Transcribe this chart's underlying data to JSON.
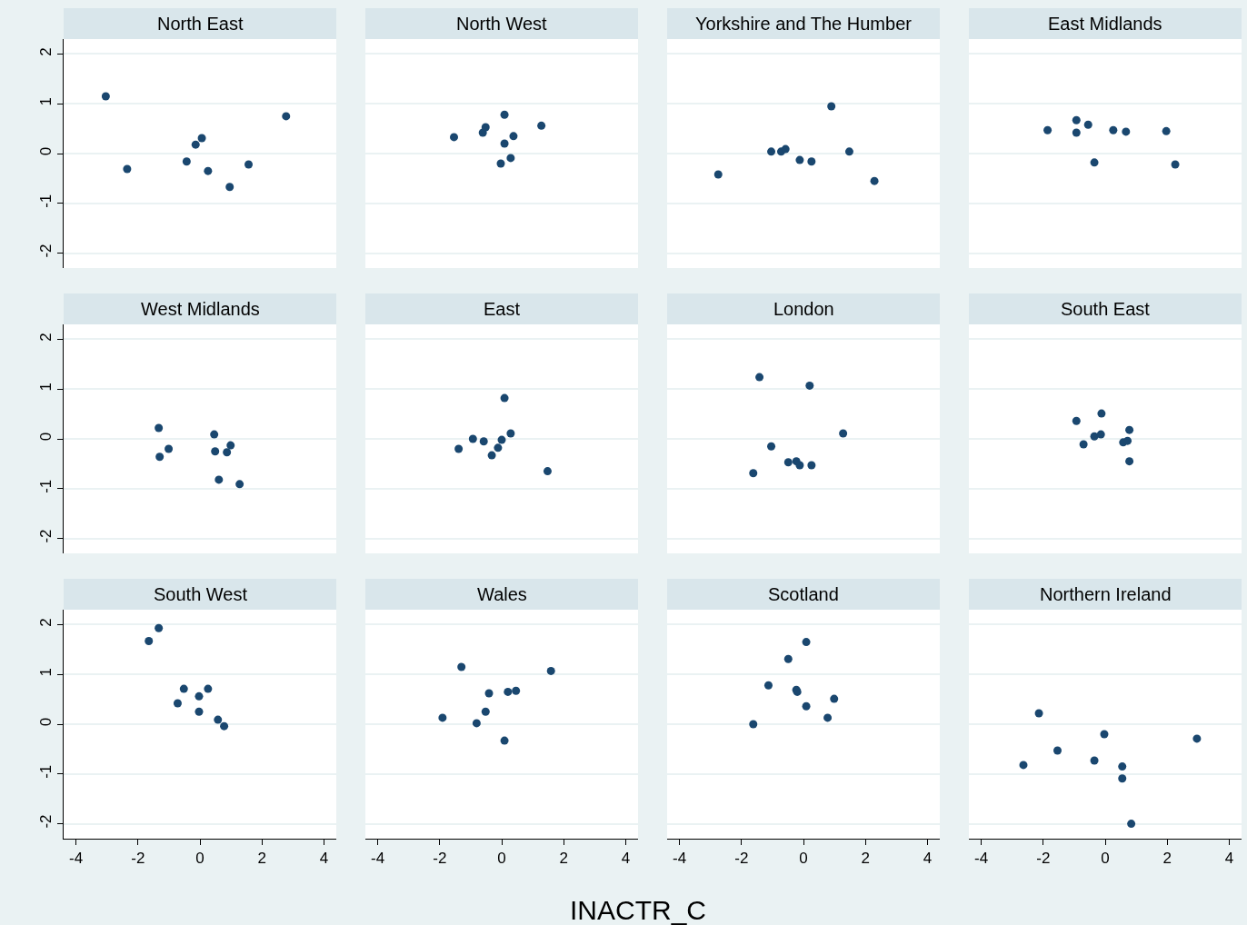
{
  "chart_data": [
    {
      "type": "scatter",
      "title": "North East",
      "xlim": [
        -4.4,
        4.4
      ],
      "ylim": [
        -2.3,
        2.3
      ],
      "xticks": [
        -4,
        -2,
        0,
        2,
        4
      ],
      "yticks": [
        -2,
        -1,
        0,
        1,
        2
      ],
      "grid": "y",
      "marker": "circle",
      "tick_labels": "y",
      "series": [
        {
          "color": "#1a476f",
          "x": [
            -3.04,
            -2.35,
            -0.43,
            -0.14,
            0.06,
            0.26,
            0.96,
            1.57,
            2.78
          ],
          "values": [
            1.15,
            -0.31,
            -0.16,
            0.18,
            0.31,
            -0.35,
            -0.67,
            -0.22,
            0.75
          ]
        }
      ]
    },
    {
      "type": "scatter",
      "title": "North West",
      "xlim": [
        -4.4,
        4.4
      ],
      "ylim": [
        -2.3,
        2.3
      ],
      "xticks": [
        -4,
        -2,
        0,
        2,
        4
      ],
      "yticks": [
        -2,
        -1,
        0,
        1,
        2
      ],
      "grid": "y",
      "marker": "circle",
      "tick_labels": false,
      "series": [
        {
          "color": "#1a476f",
          "x": [
            -1.54,
            -0.61,
            -0.52,
            0.09,
            0.09,
            -0.03,
            0.29,
            0.38,
            1.28
          ],
          "values": [
            0.33,
            0.42,
            0.53,
            0.78,
            0.2,
            -0.2,
            -0.09,
            0.35,
            0.56
          ]
        }
      ]
    },
    {
      "type": "scatter",
      "title": "Yorkshire and The Humber",
      "xlim": [
        -4.4,
        4.4
      ],
      "ylim": [
        -2.3,
        2.3
      ],
      "xticks": [
        -4,
        -2,
        0,
        2,
        4
      ],
      "yticks": [
        -2,
        -1,
        0,
        1,
        2
      ],
      "grid": "y",
      "marker": "circle",
      "tick_labels": false,
      "series": [
        {
          "color": "#1a476f",
          "x": [
            -2.75,
            -1.04,
            -0.72,
            -0.58,
            -0.12,
            0.26,
            0.9,
            1.48,
            2.29
          ],
          "values": [
            -0.42,
            0.04,
            0.04,
            0.09,
            -0.13,
            -0.16,
            0.95,
            0.04,
            -0.55
          ]
        }
      ]
    },
    {
      "type": "scatter",
      "title": "East Midlands",
      "xlim": [
        -4.4,
        4.4
      ],
      "ylim": [
        -2.3,
        2.3
      ],
      "xticks": [
        -4,
        -2,
        0,
        2,
        4
      ],
      "yticks": [
        -2,
        -1,
        0,
        1,
        2
      ],
      "grid": "y",
      "marker": "circle",
      "tick_labels": false,
      "series": [
        {
          "color": "#1a476f",
          "x": [
            -1.86,
            -0.93,
            -0.93,
            -0.55,
            -0.35,
            0.26,
            0.67,
            1.97,
            2.26
          ],
          "values": [
            0.47,
            0.67,
            0.42,
            0.58,
            -0.18,
            0.47,
            0.44,
            0.45,
            -0.22
          ]
        }
      ]
    },
    {
      "type": "scatter",
      "title": "West Midlands",
      "xlim": [
        -4.4,
        4.4
      ],
      "ylim": [
        -2.3,
        2.3
      ],
      "xticks": [
        -4,
        -2,
        0,
        2,
        4
      ],
      "yticks": [
        -2,
        -1,
        0,
        1,
        2
      ],
      "grid": "y",
      "marker": "circle",
      "tick_labels": "y",
      "series": [
        {
          "color": "#1a476f",
          "x": [
            -1.33,
            -1.3,
            -1.01,
            0.46,
            0.49,
            0.61,
            0.87,
            0.99,
            1.28
          ],
          "values": [
            0.22,
            -0.36,
            -0.2,
            0.09,
            -0.25,
            -0.82,
            -0.27,
            -0.13,
            -0.91
          ]
        }
      ]
    },
    {
      "type": "scatter",
      "title": "East",
      "xlim": [
        -4.4,
        4.4
      ],
      "ylim": [
        -2.3,
        2.3
      ],
      "xticks": [
        -4,
        -2,
        0,
        2,
        4
      ],
      "yticks": [
        -2,
        -1,
        0,
        1,
        2
      ],
      "grid": "y",
      "marker": "circle",
      "tick_labels": false,
      "series": [
        {
          "color": "#1a476f",
          "x": [
            -1.39,
            -0.93,
            -0.58,
            -0.32,
            -0.12,
            0,
            0.09,
            0.29,
            1.48
          ],
          "values": [
            -0.2,
            0,
            -0.05,
            -0.33,
            -0.18,
            -0.02,
            0.82,
            0.11,
            -0.65
          ]
        }
      ]
    },
    {
      "type": "scatter",
      "title": "London",
      "xlim": [
        -4.4,
        4.4
      ],
      "ylim": [
        -2.3,
        2.3
      ],
      "xticks": [
        -4,
        -2,
        0,
        2,
        4
      ],
      "yticks": [
        -2,
        -1,
        0,
        1,
        2
      ],
      "grid": "y",
      "marker": "circle",
      "tick_labels": false,
      "series": [
        {
          "color": "#1a476f",
          "x": [
            -1.62,
            -1.42,
            -1.04,
            -0.49,
            -0.23,
            -0.12,
            0.2,
            0.26,
            1.28
          ],
          "values": [
            -0.69,
            1.24,
            -0.15,
            -0.47,
            -0.45,
            -0.53,
            1.07,
            -0.53,
            0.11
          ]
        }
      ]
    },
    {
      "type": "scatter",
      "title": "South East",
      "xlim": [
        -4.4,
        4.4
      ],
      "ylim": [
        -2.3,
        2.3
      ],
      "xticks": [
        -4,
        -2,
        0,
        2,
        4
      ],
      "yticks": [
        -2,
        -1,
        0,
        1,
        2
      ],
      "grid": "y",
      "marker": "circle",
      "tick_labels": false,
      "series": [
        {
          "color": "#1a476f",
          "x": [
            -0.93,
            -0.7,
            -0.35,
            -0.14,
            -0.12,
            0.58,
            0.72,
            0.78,
            0.78
          ],
          "values": [
            0.36,
            -0.11,
            0.05,
            0.09,
            0.51,
            -0.07,
            -0.04,
            0.18,
            -0.45
          ]
        }
      ]
    },
    {
      "type": "scatter",
      "title": "South West",
      "xlim": [
        -4.4,
        4.4
      ],
      "ylim": [
        -2.3,
        2.3
      ],
      "xticks": [
        -4,
        -2,
        0,
        2,
        4
      ],
      "yticks": [
        -2,
        -1,
        0,
        1,
        2
      ],
      "grid": "y",
      "marker": "circle",
      "series": [
        {
          "color": "#1a476f",
          "x": [
            -1.65,
            -1.33,
            -0.72,
            -0.52,
            -0.03,
            -0.03,
            0.26,
            0.58,
            0.78
          ],
          "values": [
            1.67,
            1.93,
            0.42,
            0.71,
            0.56,
            0.25,
            0.71,
            0.09,
            -0.04
          ]
        }
      ]
    },
    {
      "type": "scatter",
      "title": "Wales",
      "xlabel": "INACTR_C",
      "xlim": [
        -4.4,
        4.4
      ],
      "ylim": [
        -2.3,
        2.3
      ],
      "xticks": [
        -4,
        -2,
        0,
        2,
        4
      ],
      "yticks": [
        -2,
        -1,
        0,
        1,
        2
      ],
      "grid": "y",
      "marker": "circle",
      "tick_labels": "x",
      "series": [
        {
          "color": "#1a476f",
          "x": [
            -1.91,
            -1.3,
            -0.81,
            -0.52,
            -0.41,
            0.09,
            0.2,
            0.46,
            1.59
          ],
          "values": [
            0.13,
            1.15,
            0.02,
            0.25,
            0.62,
            -0.33,
            0.65,
            0.67,
            1.07
          ]
        }
      ]
    },
    {
      "type": "scatter",
      "title": "Scotland",
      "xlim": [
        -4.4,
        4.4
      ],
      "ylim": [
        -2.3,
        2.3
      ],
      "xticks": [
        -4,
        -2,
        0,
        2,
        4
      ],
      "yticks": [
        -2,
        -1,
        0,
        1,
        2
      ],
      "grid": "y",
      "marker": "circle",
      "tick_labels": "x",
      "series": [
        {
          "color": "#1a476f",
          "x": [
            -1.62,
            -1.13,
            -0.49,
            -0.23,
            -0.2,
            0.09,
            0.09,
            0.78,
            0.99
          ],
          "values": [
            0,
            0.78,
            1.31,
            0.69,
            0.65,
            1.65,
            0.36,
            0.13,
            0.51
          ]
        }
      ]
    },
    {
      "type": "scatter",
      "title": "Northern Ireland",
      "xlim": [
        -4.4,
        4.4
      ],
      "ylim": [
        -2.3,
        2.3
      ],
      "xticks": [
        -4,
        -2,
        0,
        2,
        4
      ],
      "yticks": [
        -2,
        -1,
        0,
        1,
        2
      ],
      "grid": "y",
      "marker": "circle",
      "tick_labels": "x",
      "series": [
        {
          "color": "#1a476f",
          "x": [
            -2.64,
            -2.14,
            -1.54,
            -0.35,
            -0.03,
            0.55,
            0.55,
            0.84,
            2.96
          ],
          "values": [
            -0.82,
            0.22,
            -0.53,
            -0.73,
            -0.2,
            -0.85,
            -1.09,
            -2.0,
            -0.29
          ]
        }
      ]
    }
  ]
}
